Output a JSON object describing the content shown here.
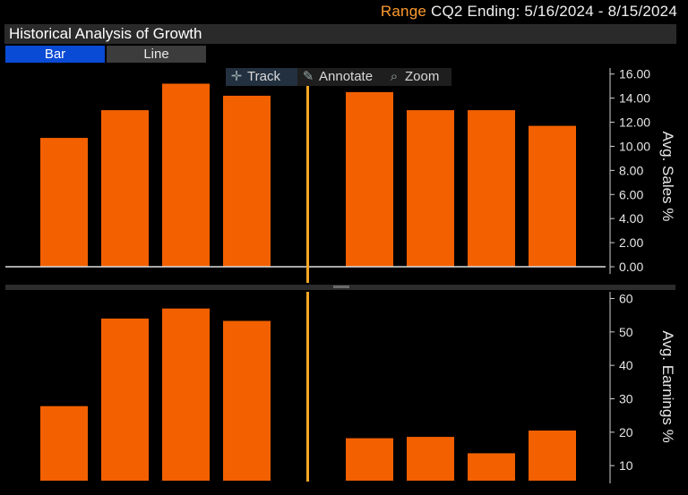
{
  "header": {
    "range_key": "Range",
    "range_value": "CQ2 Ending: 5/16/2024 - 8/15/2024"
  },
  "title": "Historical Analysis of Growth",
  "tabs": [
    {
      "label": "Bar",
      "active": true
    },
    {
      "label": "Line",
      "active": false
    }
  ],
  "toolbar": {
    "track": "Track",
    "annotate": "Annotate",
    "zoom": "Zoom"
  },
  "colors": {
    "bar": "#f26000",
    "separator": "#f5a623",
    "tab_active": "#0a4bd6"
  },
  "chart_data": [
    {
      "type": "bar",
      "ylabel": "Avg. Sales %",
      "ylim": [
        0,
        16.5
      ],
      "yticks": [
        "0.00",
        "2.00",
        "4.00",
        "6.00",
        "8.00",
        "10.00",
        "12.00",
        "14.00",
        "16.00"
      ],
      "ytick_values": [
        0,
        2,
        4,
        6,
        8,
        10,
        12,
        14,
        16
      ],
      "groups": [
        {
          "values": [
            10.7,
            13.0,
            15.2,
            14.2
          ]
        },
        {
          "values": [
            14.5,
            13.0,
            13.0,
            11.7
          ]
        }
      ]
    },
    {
      "type": "bar",
      "ylabel": "Avg. Earnings %",
      "ylim": [
        5.5,
        62
      ],
      "yticks": [
        "10",
        "20",
        "30",
        "40",
        "50",
        "60"
      ],
      "ytick_values": [
        10,
        20,
        30,
        40,
        50,
        60
      ],
      "groups": [
        {
          "values": [
            27.8,
            54.0,
            57.0,
            53.3
          ]
        },
        {
          "values": [
            18.2,
            18.6,
            13.7,
            20.5
          ]
        }
      ]
    }
  ]
}
